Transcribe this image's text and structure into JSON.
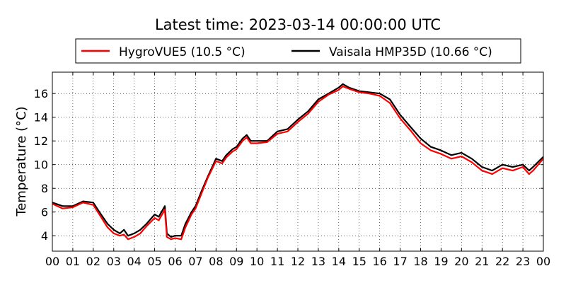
{
  "chart_data": {
    "type": "line",
    "title": "Latest time: 2023-03-14 00:00:00 UTC",
    "xlabel": "",
    "ylabel": "Temperature (°C)",
    "xlim": [
      0,
      24
    ],
    "ylim": [
      2.7,
      17.8
    ],
    "grid": true,
    "legend_position": "top",
    "x_ticks": [
      0,
      1,
      2,
      3,
      4,
      5,
      6,
      7,
      8,
      9,
      10,
      11,
      12,
      13,
      14,
      15,
      16,
      17,
      18,
      19,
      20,
      21,
      22,
      23,
      24
    ],
    "x_tick_labels": [
      "00",
      "01",
      "02",
      "03",
      "04",
      "05",
      "06",
      "07",
      "08",
      "09",
      "10",
      "11",
      "12",
      "13",
      "14",
      "15",
      "16",
      "17",
      "18",
      "19",
      "20",
      "21",
      "22",
      "23",
      "00"
    ],
    "y_ticks": [
      4,
      6,
      8,
      10,
      12,
      14,
      16
    ],
    "y_tick_labels": [
      "4",
      "6",
      "8",
      "10",
      "12",
      "14",
      "16"
    ],
    "series": [
      {
        "name": "Vaisala HMP35D (10.66 °C)",
        "color": "#000000",
        "points": [
          [
            0,
            6.8
          ],
          [
            0.5,
            6.5
          ],
          [
            1,
            6.5
          ],
          [
            1.5,
            6.9
          ],
          [
            2,
            6.8
          ],
          [
            2.3,
            6.0
          ],
          [
            2.7,
            5.0
          ],
          [
            3,
            4.5
          ],
          [
            3.3,
            4.2
          ],
          [
            3.5,
            4.5
          ],
          [
            3.7,
            4.0
          ],
          [
            4,
            4.2
          ],
          [
            4.3,
            4.5
          ],
          [
            4.6,
            5.0
          ],
          [
            5,
            5.8
          ],
          [
            5.2,
            5.6
          ],
          [
            5.5,
            6.5
          ],
          [
            5.6,
            4.2
          ],
          [
            5.8,
            3.9
          ],
          [
            6,
            4.0
          ],
          [
            6.3,
            4.0
          ],
          [
            6.5,
            5.0
          ],
          [
            6.8,
            6.0
          ],
          [
            7,
            6.5
          ],
          [
            7.3,
            7.8
          ],
          [
            7.6,
            9.0
          ],
          [
            8,
            10.5
          ],
          [
            8.3,
            10.3
          ],
          [
            8.5,
            10.8
          ],
          [
            8.8,
            11.3
          ],
          [
            9,
            11.5
          ],
          [
            9.3,
            12.2
          ],
          [
            9.5,
            12.5
          ],
          [
            9.7,
            12.0
          ],
          [
            10,
            12.0
          ],
          [
            10.5,
            12.0
          ],
          [
            11,
            12.8
          ],
          [
            11.5,
            13.0
          ],
          [
            12,
            13.8
          ],
          [
            12.5,
            14.5
          ],
          [
            13,
            15.5
          ],
          [
            13.5,
            16.0
          ],
          [
            14,
            16.5
          ],
          [
            14.2,
            16.8
          ],
          [
            14.5,
            16.5
          ],
          [
            15,
            16.2
          ],
          [
            15.5,
            16.1
          ],
          [
            16,
            16.0
          ],
          [
            16.5,
            15.5
          ],
          [
            17,
            14.2
          ],
          [
            17.5,
            13.2
          ],
          [
            18,
            12.2
          ],
          [
            18.5,
            11.5
          ],
          [
            19,
            11.2
          ],
          [
            19.5,
            10.8
          ],
          [
            20,
            11.0
          ],
          [
            20.5,
            10.5
          ],
          [
            21,
            9.8
          ],
          [
            21.5,
            9.5
          ],
          [
            22,
            10.0
          ],
          [
            22.5,
            9.8
          ],
          [
            23,
            10.0
          ],
          [
            23.3,
            9.5
          ],
          [
            23.5,
            9.8
          ],
          [
            24,
            10.66
          ]
        ]
      },
      {
        "name": "HygroVUE5 (10.5 °C)",
        "color": "#ff0000",
        "points": [
          [
            0,
            6.7
          ],
          [
            0.5,
            6.3
          ],
          [
            1,
            6.4
          ],
          [
            1.5,
            6.8
          ],
          [
            2,
            6.6
          ],
          [
            2.3,
            5.8
          ],
          [
            2.7,
            4.7
          ],
          [
            3,
            4.2
          ],
          [
            3.3,
            4.0
          ],
          [
            3.5,
            4.1
          ],
          [
            3.7,
            3.7
          ],
          [
            4,
            3.9
          ],
          [
            4.3,
            4.2
          ],
          [
            4.6,
            4.8
          ],
          [
            5,
            5.5
          ],
          [
            5.2,
            5.3
          ],
          [
            5.5,
            6.2
          ],
          [
            5.6,
            3.9
          ],
          [
            5.8,
            3.7
          ],
          [
            6,
            3.8
          ],
          [
            6.3,
            3.7
          ],
          [
            6.5,
            4.7
          ],
          [
            6.8,
            5.8
          ],
          [
            7,
            6.3
          ],
          [
            7.3,
            7.6
          ],
          [
            7.6,
            8.9
          ],
          [
            8,
            10.3
          ],
          [
            8.3,
            10.1
          ],
          [
            8.5,
            10.6
          ],
          [
            8.8,
            11.1
          ],
          [
            9,
            11.3
          ],
          [
            9.3,
            12.0
          ],
          [
            9.5,
            12.3
          ],
          [
            9.7,
            11.8
          ],
          [
            10,
            11.8
          ],
          [
            10.5,
            11.9
          ],
          [
            11,
            12.6
          ],
          [
            11.5,
            12.8
          ],
          [
            12,
            13.6
          ],
          [
            12.5,
            14.3
          ],
          [
            13,
            15.3
          ],
          [
            13.5,
            15.9
          ],
          [
            14,
            16.3
          ],
          [
            14.2,
            16.6
          ],
          [
            14.5,
            16.4
          ],
          [
            15,
            16.1
          ],
          [
            15.5,
            16.0
          ],
          [
            16,
            15.8
          ],
          [
            16.5,
            15.2
          ],
          [
            17,
            13.9
          ],
          [
            17.5,
            12.9
          ],
          [
            18,
            11.8
          ],
          [
            18.5,
            11.2
          ],
          [
            19,
            10.9
          ],
          [
            19.5,
            10.5
          ],
          [
            20,
            10.7
          ],
          [
            20.5,
            10.2
          ],
          [
            21,
            9.5
          ],
          [
            21.5,
            9.2
          ],
          [
            22,
            9.7
          ],
          [
            22.5,
            9.5
          ],
          [
            23,
            9.8
          ],
          [
            23.3,
            9.2
          ],
          [
            23.5,
            9.5
          ],
          [
            24,
            10.5
          ]
        ]
      }
    ]
  }
}
